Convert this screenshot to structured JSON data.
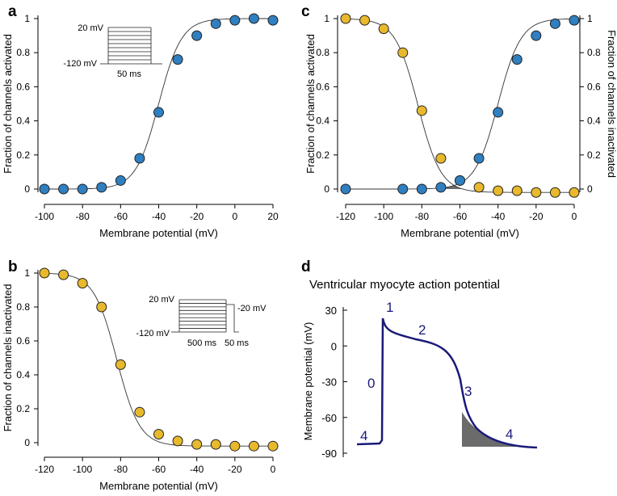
{
  "chart_data": [
    {
      "panel": "a",
      "type": "scatter",
      "xlabel": "Membrane potential (mV)",
      "ylabel": "Fraction of channels activated",
      "xlim": [
        -100,
        20
      ],
      "ylim": [
        0,
        1
      ],
      "xticks": [
        -100,
        -80,
        -60,
        -40,
        -20,
        0,
        20
      ],
      "yticks": [
        0,
        0.2,
        0.4,
        0.6,
        0.8,
        1
      ],
      "curve": {
        "type": "boltzmann",
        "v_half": -40,
        "k": 6,
        "increasing": true
      },
      "series": [
        {
          "color": "#2f7fc1",
          "x": [
            -100,
            -90,
            -80,
            -70,
            -60,
            -50,
            -40,
            -30,
            -20,
            -10,
            0,
            10,
            20
          ],
          "y": [
            0,
            0,
            0,
            0.01,
            0.05,
            0.18,
            0.45,
            0.76,
            0.9,
            0.97,
            0.99,
            1.0,
            0.99
          ]
        }
      ],
      "protocol": {
        "top_label": "20 mV",
        "bottom_label": "-120 mV",
        "duration_label": "50 ms"
      }
    },
    {
      "panel": "b",
      "type": "scatter",
      "xlabel": "Membrane potential (mV)",
      "ylabel": "Fraction of channels inactivated",
      "xlim": [
        -120,
        0
      ],
      "ylim": [
        0,
        1
      ],
      "xticks": [
        -120,
        -100,
        -80,
        -60,
        -40,
        -20,
        0
      ],
      "yticks": [
        0,
        0.2,
        0.4,
        0.6,
        0.8,
        1
      ],
      "curve": {
        "type": "boltzmann",
        "v_half": -82,
        "k": 6,
        "increasing": false,
        "baseline": -0.02
      },
      "series": [
        {
          "color": "#e8b92c",
          "x": [
            -120,
            -110,
            -100,
            -90,
            -80,
            -70,
            -60,
            -50,
            -40,
            -30,
            -20,
            -10,
            0
          ],
          "y": [
            1.0,
            0.99,
            0.94,
            0.8,
            0.46,
            0.18,
            0.05,
            0.01,
            -0.01,
            -0.01,
            -0.02,
            -0.02,
            -0.02
          ]
        }
      ],
      "protocol": {
        "top_label": "20 mV",
        "bottom_label": "-120 mV",
        "step_label": "-20 mV",
        "prepulse_label": "500 ms",
        "test_label": "50 ms"
      }
    },
    {
      "panel": "c",
      "type": "scatter",
      "xlabel": "Membrane potential (mV)",
      "ylabel": "Fraction of channels activated",
      "ylabel_right": "Fraction of channels inactivated",
      "xlim": [
        -120,
        0
      ],
      "ylim": [
        0,
        1
      ],
      "xticks": [
        -120,
        -100,
        -80,
        -60,
        -40,
        -20,
        0
      ],
      "yticks": [
        0,
        0.2,
        0.4,
        0.6,
        0.8,
        1
      ],
      "yticks_right": [
        0,
        0.2,
        0.4,
        0.6,
        0.8,
        1
      ],
      "series": [
        {
          "color": "#e8b92c",
          "x": [
            -120,
            -110,
            -100,
            -90,
            -80,
            -70,
            -60,
            -50,
            -40,
            -30,
            -20,
            -10,
            0
          ],
          "y": [
            1.0,
            0.99,
            0.94,
            0.8,
            0.46,
            0.18,
            0.05,
            0.01,
            -0.01,
            -0.01,
            -0.02,
            -0.02,
            -0.02
          ]
        },
        {
          "color": "#2f7fc1",
          "x": [
            -120,
            -90,
            -80,
            -70,
            -60,
            -50,
            -40,
            -30,
            -20,
            -10,
            0
          ],
          "y": [
            0,
            0,
            0,
            0.01,
            0.05,
            0.18,
            0.45,
            0.76,
            0.9,
            0.97,
            0.99
          ]
        }
      ],
      "overlap_shaded": true
    },
    {
      "panel": "d",
      "type": "line",
      "title": "Ventricular myocyte action potential",
      "ylabel": "Membrane potential (mV)",
      "ylim": [
        -90,
        30
      ],
      "yticks": [
        30,
        0,
        -30,
        -60,
        -90
      ],
      "phases": [
        "4",
        "0",
        "1",
        "2",
        "3",
        "4"
      ],
      "color": "#1a1a7a"
    }
  ]
}
